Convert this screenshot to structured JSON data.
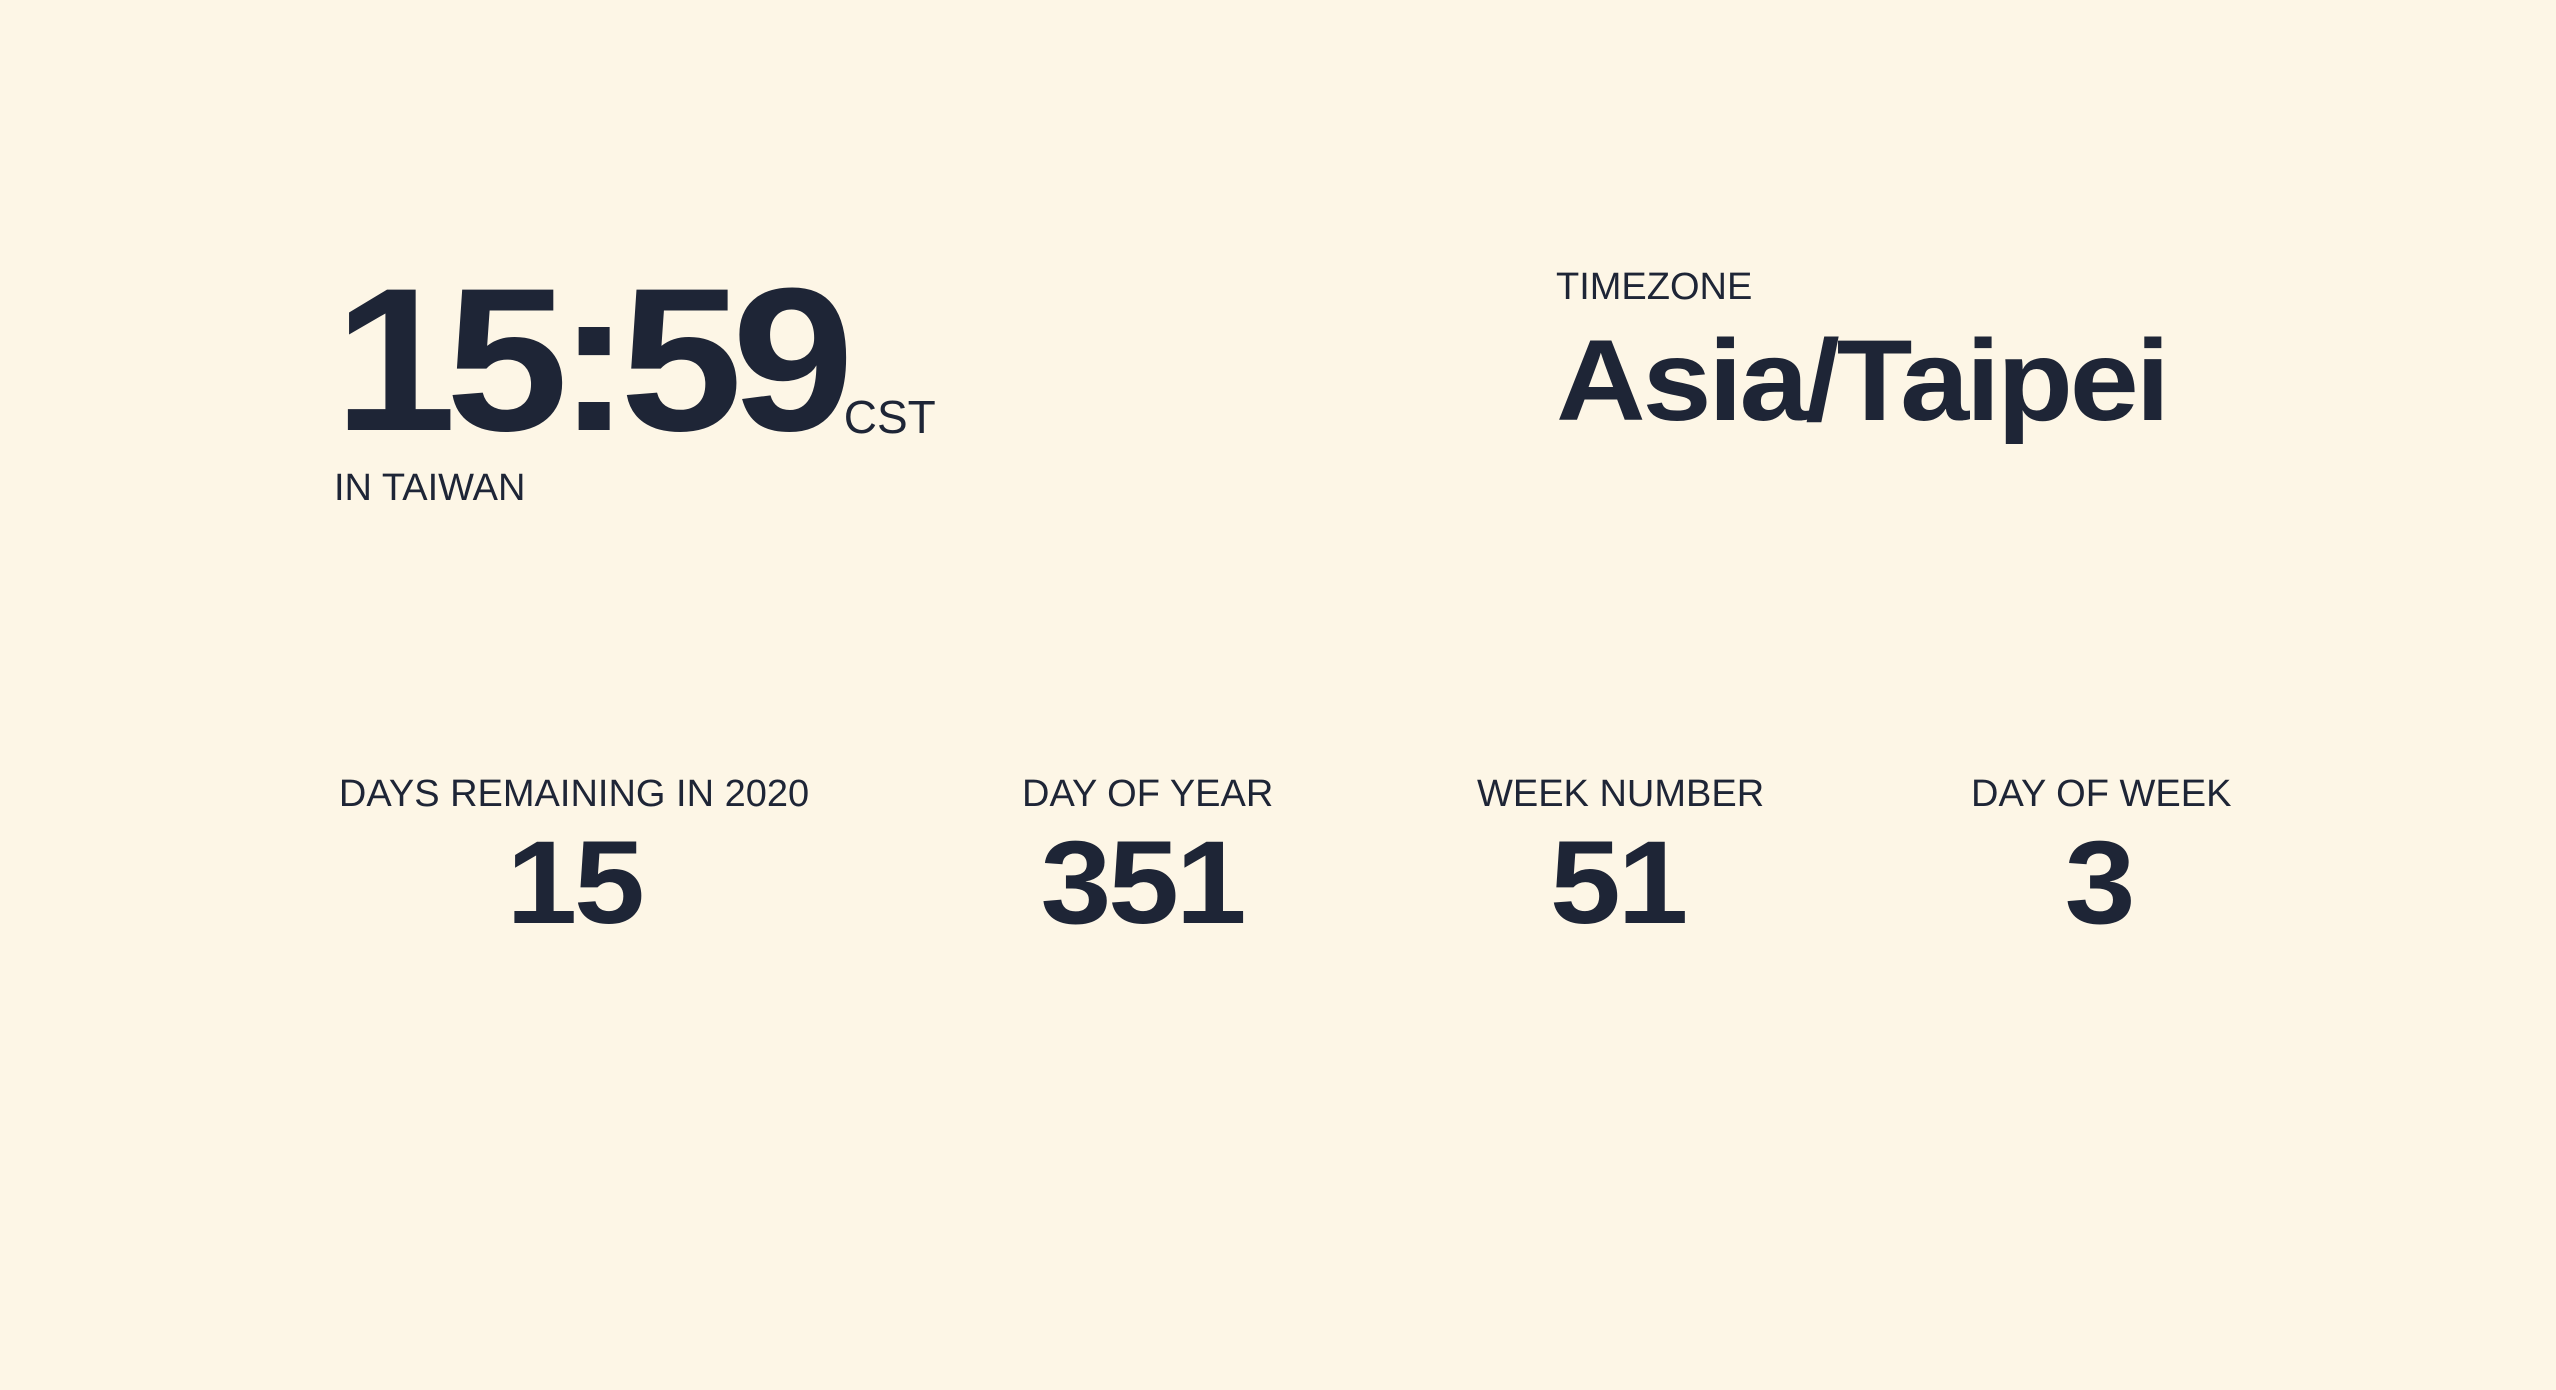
{
  "clock": {
    "time": "15:59",
    "abbreviation": "CST",
    "location": "IN TAIWAN"
  },
  "timezone": {
    "label": "TIMEZONE",
    "value": "Asia/Taipei"
  },
  "stats": [
    {
      "label": "DAYS REMAINING IN 2020",
      "value": "15"
    },
    {
      "label": "DAY OF YEAR",
      "value": "351"
    },
    {
      "label": "WEEK NUMBER",
      "value": "51"
    },
    {
      "label": "DAY OF WEEK",
      "value": "3"
    }
  ],
  "colors": {
    "background": "#fdf6e6",
    "text": "#1e2536"
  }
}
